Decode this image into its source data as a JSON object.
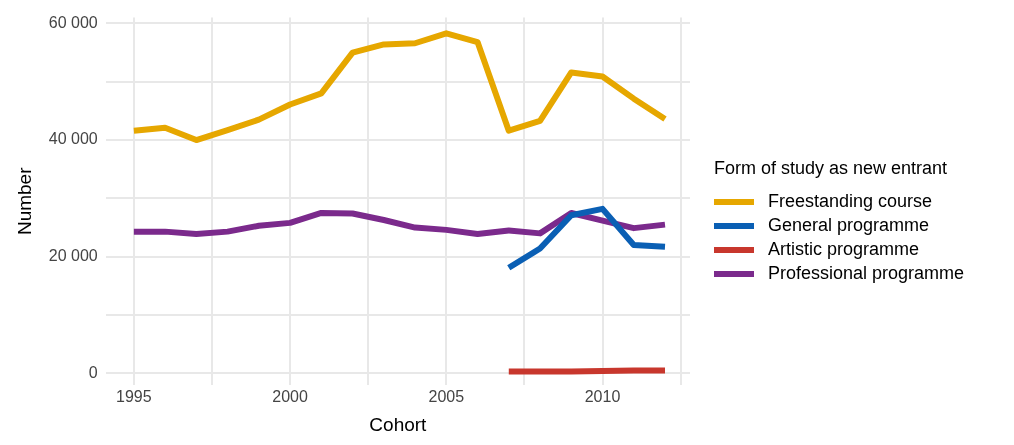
{
  "chart_data": {
    "type": "line",
    "xlabel": "Cohort",
    "ylabel": "Number",
    "legend_title": "Form of study as new entrant",
    "x": [
      1995,
      1996,
      1997,
      1998,
      1999,
      2000,
      2001,
      2002,
      2003,
      2004,
      2005,
      2006,
      2007,
      2008,
      2009,
      2010,
      2011,
      2012
    ],
    "series": [
      {
        "name": "Freestanding course",
        "color": "#e6a700",
        "values": [
          41600,
          42100,
          40000,
          41700,
          43500,
          46100,
          48000,
          55000,
          56400,
          56600,
          58300,
          56800,
          41600,
          43300,
          51600,
          50900,
          47100,
          43600
        ]
      },
      {
        "name": "General programme",
        "color": "#0a5fb4",
        "values": [
          null,
          null,
          null,
          null,
          null,
          null,
          null,
          null,
          null,
          null,
          null,
          null,
          18100,
          21400,
          27100,
          28200,
          22000,
          21700
        ]
      },
      {
        "name": "Artistic programme",
        "color": "#c8372d",
        "values": [
          null,
          null,
          null,
          null,
          null,
          null,
          null,
          null,
          null,
          null,
          null,
          null,
          300,
          300,
          300,
          400,
          500,
          500
        ]
      },
      {
        "name": "Professional programme",
        "color": "#7b2a8c",
        "values": [
          24300,
          24300,
          23900,
          24300,
          25300,
          25800,
          27500,
          27400,
          26300,
          25000,
          24600,
          23900,
          24500,
          24000,
          27500,
          26200,
          24900,
          25500
        ]
      }
    ],
    "xlim": [
      1994.1,
      2012.8
    ],
    "xticks": [
      1995,
      {
        "value": 1997.5,
        "label": null
      },
      2000,
      {
        "value": 2002.5,
        "label": null
      },
      2005,
      {
        "value": 2007.5,
        "label": null
      },
      2010,
      {
        "value": 2012.5,
        "label": null
      }
    ],
    "ylim": [
      -2000,
      61000
    ],
    "yticks": [
      {
        "value": 0,
        "label": "0"
      },
      {
        "value": 10000,
        "label": null
      },
      {
        "value": 20000,
        "label": "20 000"
      },
      {
        "value": 30000,
        "label": null
      },
      {
        "value": 40000,
        "label": "40 000"
      },
      {
        "value": 50000,
        "label": null
      },
      {
        "value": 60000,
        "label": "60 000"
      }
    ],
    "grid": true,
    "legend": "right",
    "marker": "none",
    "line_style": "solid"
  }
}
